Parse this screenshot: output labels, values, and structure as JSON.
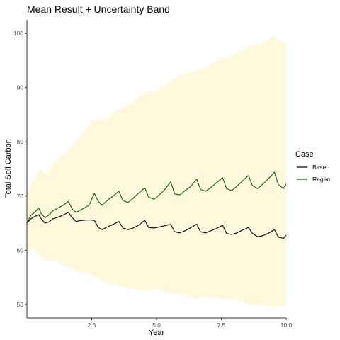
{
  "chart_data": {
    "type": "line",
    "title": "Mean Result + Uncertainty Band",
    "xlabel": "Year",
    "ylabel": "Total Soil Carbon",
    "xlim": [
      0,
      10
    ],
    "ylim": [
      47.5,
      102.5
    ],
    "x_ticks": [
      2.5,
      5.0,
      7.5,
      10.0
    ],
    "x_tick_labels": [
      "2.5",
      "5.0",
      "7.5",
      "10.0"
    ],
    "y_ticks": [
      50,
      60,
      70,
      80,
      90,
      100
    ],
    "y_tick_labels": [
      "50",
      "60",
      "70",
      "80",
      "90",
      "100"
    ],
    "grid": false,
    "band": {
      "color": "#fff8dc",
      "x": [
        0,
        0.25,
        0.5,
        0.75,
        1,
        1.5,
        2,
        2.5,
        3,
        3.5,
        4,
        4.5,
        5,
        5.5,
        6,
        6.5,
        7,
        7.5,
        8,
        8.5,
        9,
        9.5,
        10
      ],
      "upper": [
        70,
        73,
        75,
        74,
        76,
        78,
        80.5,
        84,
        84,
        86,
        87,
        89,
        89.5,
        91,
        92.5,
        93,
        94,
        95.5,
        96,
        97.5,
        98,
        99.5,
        98
      ],
      "lower": [
        60,
        60.5,
        59,
        58,
        58.5,
        57,
        56,
        55.5,
        54,
        53.5,
        53,
        52.5,
        53,
        52,
        52,
        51,
        51.5,
        51,
        51,
        50,
        50,
        49.5,
        50
      ]
    },
    "legend": {
      "title": "Case",
      "position": "right"
    },
    "series": [
      {
        "name": "Base",
        "color": "#000000",
        "x": [
          0,
          0.15,
          0.3,
          0.45,
          0.55,
          0.7,
          0.85,
          1.0,
          1.2,
          1.4,
          1.6,
          1.75,
          1.9,
          2.1,
          2.4,
          2.6,
          2.75,
          2.9,
          3.1,
          3.3,
          3.55,
          3.7,
          3.9,
          4.1,
          4.3,
          4.55,
          4.7,
          4.9,
          5.1,
          5.3,
          5.55,
          5.7,
          5.9,
          6.1,
          6.3,
          6.55,
          6.7,
          6.9,
          7.1,
          7.3,
          7.55,
          7.7,
          7.9,
          8.1,
          8.3,
          8.55,
          8.7,
          8.9,
          9.1,
          9.3,
          9.55,
          9.7,
          9.9,
          10.0
        ],
        "y": [
          65,
          65.8,
          66.2,
          66.6,
          65.8,
          65,
          65.2,
          65.8,
          66.1,
          66.5,
          67,
          66,
          65.3,
          65.5,
          65.6,
          65.5,
          64.2,
          63.8,
          64.3,
          64.7,
          65.3,
          64.1,
          63.8,
          64.1,
          64.6,
          65.5,
          64.2,
          64.1,
          64.3,
          64.5,
          64.8,
          63.4,
          63.2,
          63.6,
          64.1,
          64.8,
          63.4,
          63.2,
          63.6,
          64,
          64.6,
          63.1,
          62.9,
          63.2,
          63.7,
          64.2,
          63.1,
          62.5,
          62.7,
          63.1,
          63.8,
          62.4,
          62.2,
          62.8
        ]
      },
      {
        "name": "Regen",
        "color": "#006400",
        "x": [
          0,
          0.15,
          0.3,
          0.45,
          0.55,
          0.7,
          0.85,
          1.0,
          1.2,
          1.4,
          1.6,
          1.75,
          1.9,
          2.1,
          2.4,
          2.6,
          2.75,
          2.9,
          3.1,
          3.3,
          3.55,
          3.7,
          3.9,
          4.1,
          4.3,
          4.55,
          4.7,
          4.9,
          5.1,
          5.3,
          5.55,
          5.7,
          5.9,
          6.1,
          6.3,
          6.55,
          6.7,
          6.9,
          7.1,
          7.3,
          7.55,
          7.7,
          7.9,
          8.1,
          8.3,
          8.55,
          8.7,
          8.9,
          9.1,
          9.3,
          9.55,
          9.7,
          9.9,
          10.0
        ],
        "y": [
          65,
          66.4,
          67,
          67.8,
          66.8,
          66,
          66.5,
          67.3,
          67.8,
          68.3,
          69,
          67.6,
          67,
          67.5,
          68.3,
          70.5,
          69,
          68.3,
          69.2,
          69.9,
          70.9,
          69.2,
          68.8,
          69.6,
          70.5,
          71.5,
          69.8,
          69.4,
          70.2,
          71.1,
          72.6,
          70.4,
          70.2,
          71,
          71.7,
          73.1,
          71.2,
          70.9,
          71.6,
          72.4,
          73.4,
          71.4,
          71,
          71.8,
          72.7,
          73.8,
          71.9,
          71.4,
          72.2,
          73.1,
          74.4,
          72.1,
          71.4,
          72.2
        ]
      }
    ]
  }
}
